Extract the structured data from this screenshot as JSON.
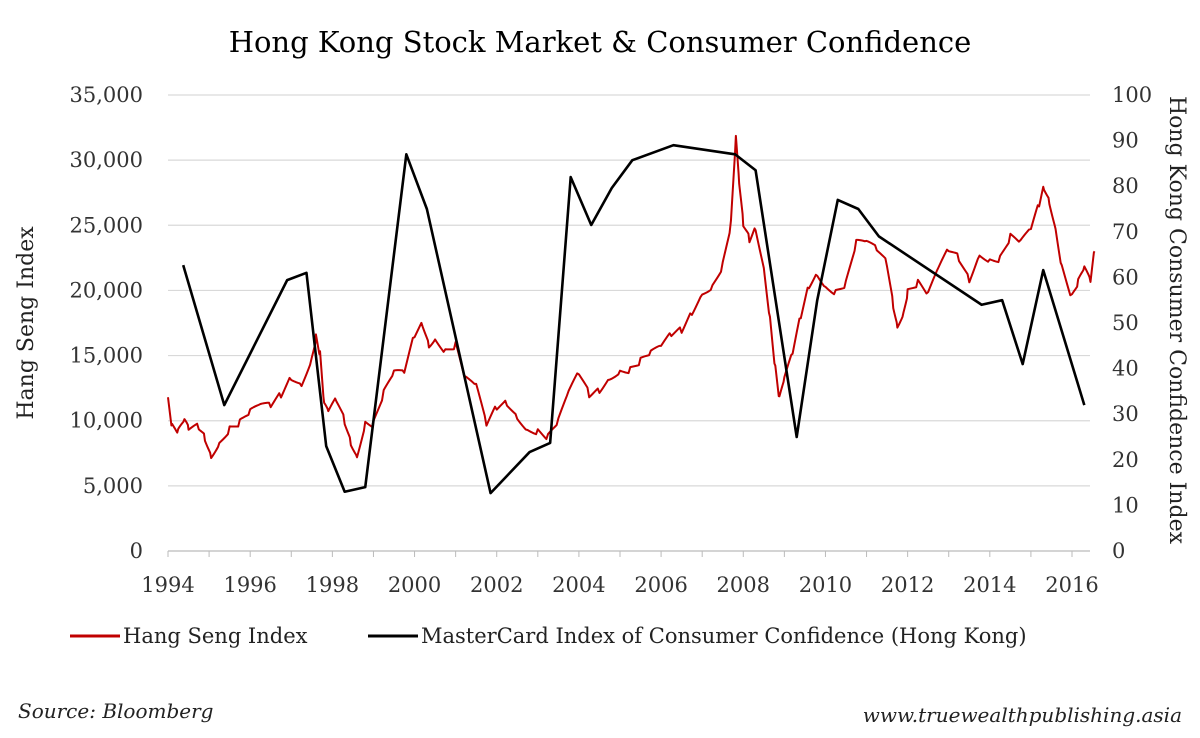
{
  "chart_data": {
    "type": "line",
    "title": "Hong Kong Stock Market & Consumer Confidence",
    "xlabel": "",
    "ylabel": "Hang Seng Index",
    "y2label": "Hong Kong Consumer Confidence Index",
    "xlim": [
      1994,
      2016.55
    ],
    "ylim": [
      0,
      35000
    ],
    "y2lim": [
      0,
      100
    ],
    "grid": true,
    "x_ticks": [
      "1994",
      "1996",
      "1998",
      "2000",
      "2002",
      "2004",
      "2006",
      "2008",
      "2010",
      "2012",
      "2014",
      "2016"
    ],
    "y_ticks": [
      "0",
      "5,000",
      "10,000",
      "15,000",
      "20,000",
      "25,000",
      "30,000",
      "35,000"
    ],
    "y2_ticks": [
      "0",
      "10",
      "20",
      "30",
      "40",
      "50",
      "60",
      "70",
      "80",
      "90",
      "100"
    ],
    "legend_position": "bottom",
    "series": [
      {
        "name": "Hang Seng Index",
        "axis": "left",
        "color": "#c00000",
        "x": [
          1994.0,
          1994.1,
          1994.25,
          1994.4,
          1994.5,
          1994.75,
          1994.9,
          1995.05,
          1995.25,
          1995.5,
          1995.75,
          1996.0,
          1996.25,
          1996.5,
          1996.75,
          1997.0,
          1997.25,
          1997.5,
          1997.6,
          1997.7,
          1997.8,
          1997.9,
          1998.1,
          1998.3,
          1998.45,
          1998.6,
          1998.8,
          1999.0,
          1999.25,
          1999.5,
          1999.75,
          2000.0,
          2000.2,
          2000.35,
          2000.5,
          2000.75,
          2001.0,
          2001.25,
          2001.5,
          2001.75,
          2002.0,
          2002.25,
          2002.5,
          2002.75,
          2003.0,
          2003.25,
          2003.5,
          2003.75,
          2004.0,
          2004.25,
          2004.5,
          2004.75,
          2005.0,
          2005.25,
          2005.5,
          2005.75,
          2006.0,
          2006.25,
          2006.5,
          2006.75,
          2007.0,
          2007.25,
          2007.5,
          2007.7,
          2007.82,
          2007.9,
          2008.0,
          2008.15,
          2008.3,
          2008.5,
          2008.65,
          2008.78,
          2008.88,
          2009.0,
          2009.2,
          2009.4,
          2009.6,
          2009.8,
          2010.0,
          2010.25,
          2010.5,
          2010.75,
          2011.0,
          2011.25,
          2011.5,
          2011.65,
          2011.75,
          2011.9,
          2012.0,
          2012.25,
          2012.5,
          2012.75,
          2013.0,
          2013.25,
          2013.5,
          2013.75,
          2014.0,
          2014.25,
          2014.5,
          2014.75,
          2015.0,
          2015.2,
          2015.32,
          2015.45,
          2015.6,
          2015.75,
          2016.0,
          2016.15,
          2016.3,
          2016.45,
          2016.55
        ],
        "values": [
          11800,
          9500,
          9000,
          9800,
          9200,
          9500,
          8800,
          7500,
          8500,
          9500,
          9800,
          10500,
          11000,
          11000,
          12000,
          13500,
          13000,
          15000,
          16500,
          15000,
          11000,
          10500,
          11500,
          10000,
          8500,
          7500,
          10000,
          9800,
          12000,
          13500,
          13500,
          16500,
          17500,
          16000,
          16500,
          15500,
          15800,
          13000,
          12500,
          9500,
          11000,
          11500,
          10500,
          9500,
          9300,
          8700,
          9800,
          12000,
          13500,
          12000,
          12500,
          13500,
          14000,
          14000,
          14500,
          15000,
          15500,
          16500,
          17000,
          18500,
          20000,
          20500,
          22000,
          25000,
          31500,
          28000,
          25000,
          24000,
          25000,
          22000,
          18000,
          14000,
          11500,
          13000,
          15000,
          18000,
          20500,
          21500,
          20500,
          20000,
          20500,
          23500,
          23500,
          23000,
          22000,
          19000,
          17500,
          18500,
          20000,
          20500,
          19500,
          21500,
          23000,
          22500,
          21000,
          23000,
          22500,
          22500,
          24000,
          23500,
          24500,
          26500,
          28000,
          27000,
          25000,
          22000,
          19500,
          20500,
          21500,
          20500,
          23000
        ]
      },
      {
        "name": "MasterCard Index of Consumer Confidence (Hong Kong)",
        "axis": "right",
        "color": "#000000",
        "x": [
          1994.37,
          1995.37,
          1996.9,
          1997.37,
          1997.85,
          1998.3,
          1998.8,
          1999.8,
          2000.3,
          2001.85,
          2002.8,
          2003.3,
          2003.8,
          2004.3,
          2004.8,
          2005.3,
          2006.3,
          2007.8,
          2008.3,
          2009.3,
          2009.8,
          2010.3,
          2010.8,
          2011.3,
          2013.8,
          2014.3,
          2014.8,
          2015.3,
          2016.3
        ],
        "values": [
          62.7,
          32,
          59.4,
          61,
          23,
          13,
          14,
          87,
          75,
          12.7,
          21.7,
          23.7,
          82,
          71.5,
          79.6,
          85.7,
          89,
          87,
          83.5,
          25,
          55,
          77,
          75,
          69,
          54,
          55,
          41,
          61.6,
          32
        ]
      }
    ],
    "source": "Source: Bloomberg",
    "website": "www.truewealthpublishing.asia"
  }
}
